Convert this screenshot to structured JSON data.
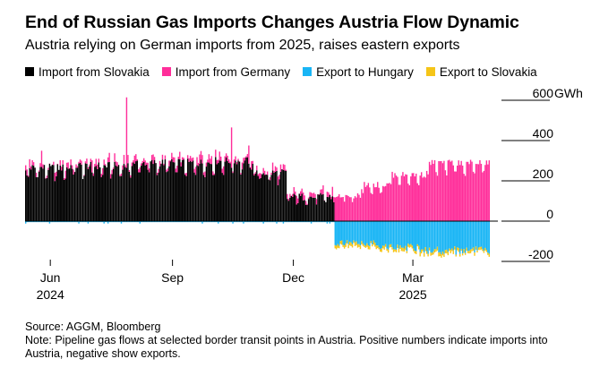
{
  "title": "End of Russian Gas Imports Changes Austria Flow Dynamic",
  "subtitle": "Austria relying on German imports from 2025, raises eastern exports",
  "source": "Source: AGGM, Bloomberg",
  "note": "Note: Pipeline gas flows at selected border transit points in Austria. Positive numbers indicate imports into Austria, negative show exports.",
  "chart_data": {
    "type": "bar",
    "stacked": true,
    "x_start": "2024-05-13",
    "x_end": "2025-05-04",
    "ylim": [
      -300,
      600
    ],
    "y_unit": "GWh",
    "y_ticks": [
      600,
      400,
      200,
      0,
      -200
    ],
    "y_tick_labels": [
      "600",
      "400",
      "200",
      "0",
      "-200"
    ],
    "x_ticks": [
      {
        "date": "2024-06-01",
        "label": "Jun",
        "year": "2024"
      },
      {
        "date": "2024-09-01",
        "label": "Sep",
        "year": ""
      },
      {
        "date": "2024-12-01",
        "label": "Dec",
        "year": ""
      },
      {
        "date": "2025-03-01",
        "label": "Mar",
        "year": "2025"
      }
    ],
    "legend_position": "top",
    "grid": false,
    "series": [
      {
        "name": "Import from Slovakia",
        "color": "#000000",
        "segments": [
          {
            "from": "2024-05-13",
            "to": "2024-06-15",
            "value": 265
          },
          {
            "from": "2024-06-16",
            "to": "2024-07-31",
            "value": 275
          },
          {
            "from": "2024-08-01",
            "to": "2024-09-30",
            "value": 290
          },
          {
            "from": "2024-10-01",
            "to": "2024-10-31",
            "value": 300
          },
          {
            "from": "2024-11-01",
            "to": "2024-11-25",
            "value": 240
          },
          {
            "from": "2024-11-26",
            "to": "2024-12-31",
            "value": 120
          }
        ]
      },
      {
        "name": "Import from Germany",
        "color": "#ff2e9a",
        "segments": [
          {
            "from": "2024-05-13",
            "to": "2024-11-15",
            "value": 20
          },
          {
            "from": "2024-11-16",
            "to": "2024-12-31",
            "value": 20
          },
          {
            "from": "2025-01-01",
            "to": "2025-01-20",
            "value": 130
          },
          {
            "from": "2025-01-21",
            "to": "2025-02-10",
            "value": 180
          },
          {
            "from": "2025-02-11",
            "to": "2025-03-10",
            "value": 230
          },
          {
            "from": "2025-03-11",
            "to": "2025-04-27",
            "value": 290
          }
        ],
        "spikes": [
          {
            "date": "2024-05-25",
            "value": 80
          },
          {
            "date": "2024-07-02",
            "value": 60
          },
          {
            "date": "2024-07-28",
            "value": 350
          },
          {
            "date": "2024-10-15",
            "value": 200
          },
          {
            "date": "2024-10-28",
            "value": 90
          }
        ]
      },
      {
        "name": "Export to Hungary",
        "color": "#19b5f5",
        "segments": [
          {
            "from": "2024-05-13",
            "to": "2024-12-31",
            "value": -5
          },
          {
            "from": "2025-01-01",
            "to": "2025-01-31",
            "value": -110
          },
          {
            "from": "2025-02-01",
            "to": "2025-03-05",
            "value": -130
          },
          {
            "from": "2025-03-06",
            "to": "2025-04-27",
            "value": -145
          }
        ]
      },
      {
        "name": "Export to Slovakia",
        "color": "#f5c518",
        "segments": [
          {
            "from": "2024-05-13",
            "to": "2024-12-31",
            "value": 0
          },
          {
            "from": "2025-01-01",
            "to": "2025-04-27",
            "value": -15
          }
        ]
      }
    ]
  }
}
